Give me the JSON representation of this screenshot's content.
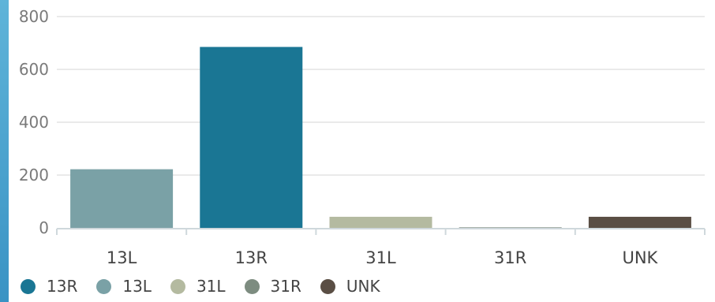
{
  "chart_data": {
    "type": "bar",
    "categories": [
      "13L",
      "13R",
      "31L",
      "31R",
      "UNK"
    ],
    "values": [
      222,
      685,
      42,
      2,
      42
    ],
    "colors": [
      "#7aa1a6",
      "#1a7694",
      "#b4baa0",
      "#7d8c80",
      "#5a4e44"
    ],
    "ylim": [
      0,
      800
    ],
    "yticks": [
      "0",
      "200",
      "400",
      "600",
      "800"
    ],
    "grid": true,
    "legend_position": "bottom-left",
    "legend": [
      {
        "label": "13R",
        "color": "#1a7694"
      },
      {
        "label": "13L",
        "color": "#7aa1a6"
      },
      {
        "label": "31L",
        "color": "#b4baa0"
      },
      {
        "label": "31R",
        "color": "#7d8c80"
      },
      {
        "label": "UNK",
        "color": "#5a4e44"
      }
    ]
  }
}
